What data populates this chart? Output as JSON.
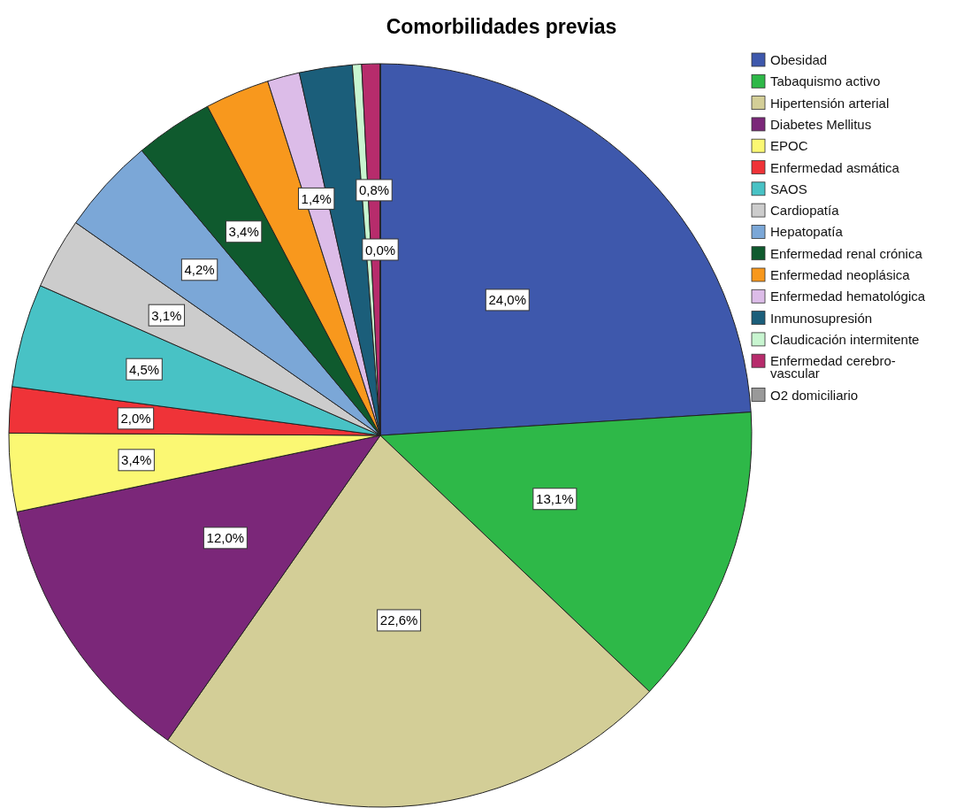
{
  "chart_data": {
    "type": "pie",
    "title": "Comorbilidades previas",
    "categories": [
      "Obesidad",
      "Tabaquismo activo",
      "Hipertensión arterial",
      "Diabetes Mellitus",
      "EPOC",
      "Enfermedad asmática",
      "SAOS",
      "Cardiopatía",
      "Hepatopatía",
      "Enfermedad renal crónica",
      "Enfermedad neoplásica",
      "Enfermedad hematológica",
      "Inmunosupresión",
      "Claudicación intermitente",
      "Enfermedad cerebro-vascular",
      "O2 domiciliario"
    ],
    "values": [
      24.0,
      13.1,
      22.6,
      12.0,
      3.4,
      2.0,
      4.5,
      3.1,
      4.2,
      3.4,
      2.8,
      1.4,
      2.3,
      0.4,
      0.8,
      0.0
    ],
    "value_labels": [
      "24,0%",
      "13,1%",
      "22,6%",
      "12,0%",
      "3,4%",
      "2,0%",
      "4,5%",
      "3,1%",
      "4,2%",
      "3,4%",
      null,
      "1,4%",
      null,
      null,
      "0,8%",
      "0,0%"
    ],
    "colors": [
      "#3e58ac",
      "#2eb848",
      "#d3ce97",
      "#7b2779",
      "#fbf873",
      "#ef3338",
      "#48c2c5",
      "#cccccc",
      "#7ba7d7",
      "#0f5a2e",
      "#f8981d",
      "#dcbce8",
      "#1b5e7a",
      "#c8f5d0",
      "#b72c6c",
      "#999999"
    ],
    "legend": "top right"
  }
}
